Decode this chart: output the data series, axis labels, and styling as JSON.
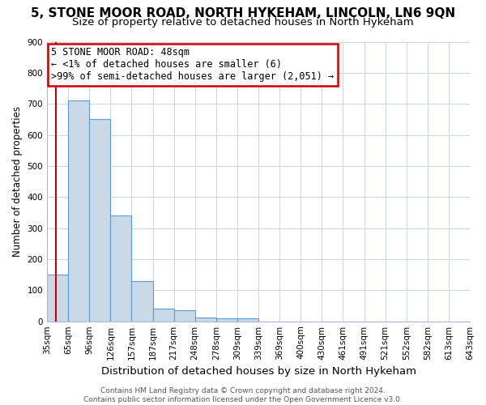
{
  "title1": "5, STONE MOOR ROAD, NORTH HYKEHAM, LINCOLN, LN6 9QN",
  "title2": "Size of property relative to detached houses in North Hykeham",
  "xlabel": "Distribution of detached houses by size in North Hykeham",
  "ylabel": "Number of detached properties",
  "footer": "Contains HM Land Registry data © Crown copyright and database right 2024.\nContains public sector information licensed under the Open Government Licence v3.0.",
  "bin_labels": [
    "35sqm",
    "65sqm",
    "96sqm",
    "126sqm",
    "157sqm",
    "187sqm",
    "217sqm",
    "248sqm",
    "278sqm",
    "309sqm",
    "339sqm",
    "369sqm",
    "400sqm",
    "430sqm",
    "461sqm",
    "491sqm",
    "521sqm",
    "552sqm",
    "582sqm",
    "613sqm",
    "643sqm"
  ],
  "bar_heights": [
    150,
    710,
    650,
    340,
    130,
    40,
    35,
    12,
    10,
    10,
    0,
    0,
    0,
    0,
    0,
    0,
    0,
    0,
    0,
    0
  ],
  "bar_color": "#c9d9e8",
  "bar_edge_color": "#5b9bd5",
  "property_line_color": "#cc0000",
  "annotation_text": "5 STONE MOOR ROAD: 48sqm\n← <1% of detached houses are smaller (6)\n>99% of semi-detached houses are larger (2,051) →",
  "annotation_box_color": "#cc0000",
  "ylim": [
    0,
    900
  ],
  "yticks": [
    0,
    100,
    200,
    300,
    400,
    500,
    600,
    700,
    800,
    900
  ],
  "bg_color": "#ffffff",
  "grid_color": "#c8d4e3",
  "title1_fontsize": 11,
  "title2_fontsize": 9.5,
  "xlabel_fontsize": 9.5,
  "ylabel_fontsize": 8.5,
  "tick_fontsize": 7.5,
  "annotation_fontsize": 8.5,
  "footer_fontsize": 6.5
}
